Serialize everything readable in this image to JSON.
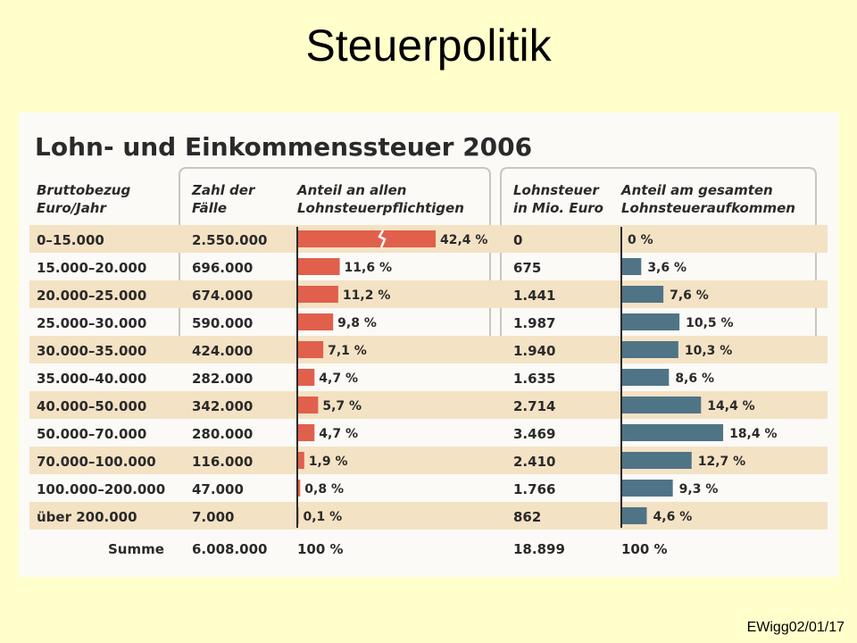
{
  "slide": {
    "title": "Steuerpolitik",
    "footer": "EWigg02/01/17"
  },
  "colors": {
    "background": "#ffffcc",
    "red_bar": "#e0604c",
    "blue_bar": "#4f7486",
    "band": "#f4e2c4",
    "total_red": "#e0604c",
    "total_blue": "#6aa0b4"
  },
  "chart_data": {
    "type": "table",
    "title": "Lohn- und Einkommenssteuer 2006",
    "headers": {
      "bracket": [
        "Bruttobezug",
        "Euro/Jahr"
      ],
      "cases": [
        "Zahl der",
        "Fälle"
      ],
      "share_cases": [
        "Anteil an allen",
        "Lohnsteuerpflichtigen"
      ],
      "tax": [
        "Lohnsteuer",
        "in Mio. Euro"
      ],
      "share_tax": [
        "Anteil am gesamten",
        "Lohnsteueraufkommen"
      ]
    },
    "categories": [
      "0–15.000",
      "15.000–20.000",
      "20.000–25.000",
      "25.000–30.000",
      "30.000–35.000",
      "35.000–40.000",
      "40.000–50.000",
      "50.000–70.000",
      "70.000–100.000",
      "100.000–200.000",
      "über 200.000"
    ],
    "cases_text": [
      "2.550.000",
      "696.000",
      "674.000",
      "590.000",
      "424.000",
      "282.000",
      "342.000",
      "280.000",
      "116.000",
      "47.000",
      "7.000"
    ],
    "share_cases": [
      42.4,
      11.6,
      11.2,
      9.8,
      7.1,
      4.7,
      5.7,
      4.7,
      1.9,
      0.8,
      0.1
    ],
    "share_cases_labels": [
      "42,4 %",
      "11,6 %",
      "11,2 %",
      "9,8 %",
      "7,1 %",
      "4,7 %",
      "5,7 %",
      "4,7 %",
      "1,9 %",
      "0,8 %",
      "0,1 %"
    ],
    "tax_text": [
      "0",
      "675",
      "1.441",
      "1.987",
      "1.940",
      "1.635",
      "2.714",
      "3.469",
      "2.410",
      "1.766",
      "862"
    ],
    "share_tax": [
      0,
      3.6,
      7.6,
      10.5,
      10.3,
      8.6,
      14.4,
      18.4,
      12.7,
      9.3,
      4.6
    ],
    "share_tax_labels": [
      "0 %",
      "3,6 %",
      "7,6 %",
      "10,5 %",
      "10,3 %",
      "8,6 %",
      "14,4 %",
      "18,4 %",
      "12,7 %",
      "9,3 %",
      "4,6 %"
    ],
    "totals": {
      "label": "Summe",
      "cases": "6.008.000",
      "share_cases": "100 %",
      "tax": "18.899",
      "share_tax": "100 %"
    },
    "broken_bar_index": 0
  }
}
